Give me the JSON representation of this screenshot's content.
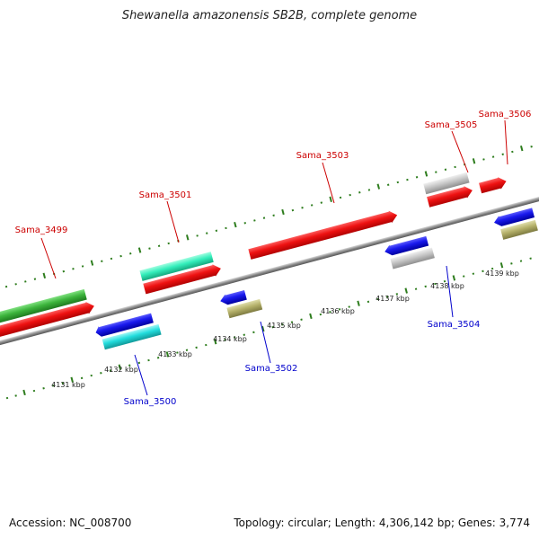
{
  "title": "Shewanella amazonensis SB2B, complete genome",
  "footer": {
    "accession": "Accession: NC_008700",
    "summary": "Topology: circular; Length: 4,306,142 bp; Genes: 3,774"
  },
  "colors": {
    "forward_label": "#cc0000",
    "reverse_label": "#0000cc",
    "backbone": "#8a8a8a",
    "ruler": "#2e7d1e",
    "cds": "#ee1111",
    "gene_green": "#3cb43c",
    "gene_teal": "#33eebb",
    "gene_blue": "#1a1aee",
    "gene_cyan": "#22dddd",
    "gene_olive": "#b5b16a",
    "gene_grey": "#c7c7c7"
  },
  "ruler_labels": [
    "4131 kbp",
    "4132 kbp",
    "4133 kbp",
    "4134 kbp",
    "4135 kbp",
    "4136 kbp",
    "4137 kbp",
    "4138 kbp",
    "4139 kbp"
  ],
  "forward_genes": [
    "Sama_3499",
    "Sama_3501",
    "Sama_3503",
    "Sama_3505",
    "Sama_3506"
  ],
  "reverse_genes": [
    "Sama_3500",
    "Sama_3502",
    "Sama_3504"
  ]
}
